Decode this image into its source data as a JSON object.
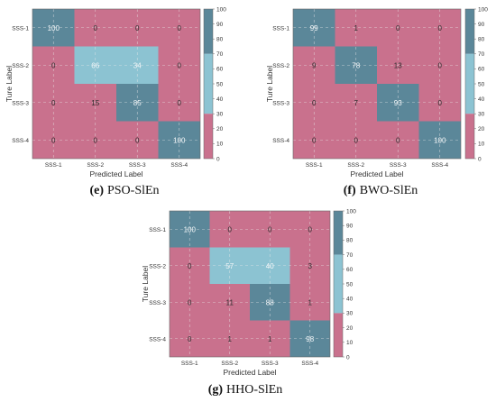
{
  "colors": {
    "low": "#c9718d",
    "mid": "#8cc3d2",
    "high": "#5b8799",
    "grid": "#e9e9e9",
    "frame": "#666666"
  },
  "colorbar_ticks": [
    "100",
    "90",
    "80",
    "70",
    "60",
    "50",
    "40",
    "30",
    "20",
    "10",
    "0"
  ],
  "chart_data": [
    {
      "type": "heatmap",
      "caption_tag": "(e)",
      "caption_name": "PSO-SlEn",
      "xlabel": "Predicted Label",
      "ylabel": "Ture Label",
      "x_categories": [
        "SSS-1",
        "SSS-2",
        "SSS-3",
        "SSS-4"
      ],
      "y_categories": [
        "SSS-1",
        "SSS-2",
        "SSS-3",
        "SSS-4"
      ],
      "values": [
        [
          100,
          0,
          0,
          0
        ],
        [
          0,
          66,
          34,
          0
        ],
        [
          0,
          15,
          85,
          0
        ],
        [
          0,
          0,
          0,
          100
        ]
      ],
      "colorbar_range": [
        0,
        100
      ]
    },
    {
      "type": "heatmap",
      "caption_tag": "(f)",
      "caption_name": "BWO-SlEn",
      "xlabel": "Predicted Label",
      "ylabel": "Ture Label",
      "x_categories": [
        "SSS-1",
        "SSS-2",
        "SSS-3",
        "SSS-4"
      ],
      "y_categories": [
        "SSS-1",
        "SSS-2",
        "SSS-3",
        "SSS-4"
      ],
      "values": [
        [
          99,
          1,
          0,
          0
        ],
        [
          9,
          78,
          13,
          0
        ],
        [
          0,
          7,
          93,
          0
        ],
        [
          0,
          0,
          0,
          100
        ]
      ],
      "colorbar_range": [
        0,
        100
      ]
    },
    {
      "type": "heatmap",
      "caption_tag": "(g)",
      "caption_name": "HHO-SlEn",
      "xlabel": "Predicted Label",
      "ylabel": "Ture Label",
      "x_categories": [
        "SSS-1",
        "SSS-2",
        "SSS-3",
        "SSS-4"
      ],
      "y_categories": [
        "SSS-1",
        "SSS-2",
        "SSS-3",
        "SSS-4"
      ],
      "values": [
        [
          100,
          0,
          0,
          0
        ],
        [
          0,
          57,
          40,
          3
        ],
        [
          0,
          11,
          88,
          1
        ],
        [
          0,
          1,
          1,
          98
        ]
      ],
      "colorbar_range": [
        0,
        100
      ]
    }
  ]
}
